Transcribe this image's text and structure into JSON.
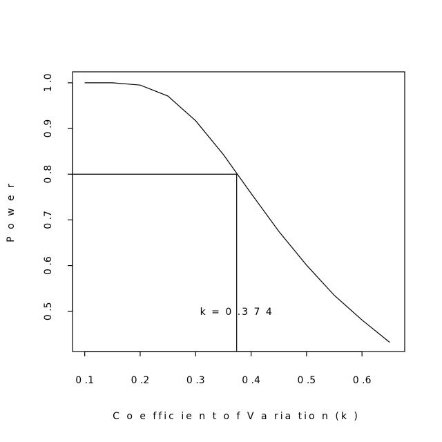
{
  "chart_data": {
    "type": "line",
    "title": "",
    "xlabel": "C o e ffic ie n t o f V a ria tio n (k )",
    "ylabel": "P o w e r",
    "xlim": [
      0.078,
      0.677
    ],
    "ylim": [
      0.412,
      1.024
    ],
    "xticks": [
      0.1,
      0.2,
      0.3,
      0.4,
      0.5,
      0.6
    ],
    "xtick_labels": [
      "0 .1",
      "0 .2",
      "0 .3",
      "0 .4",
      "0 .5",
      "0 .6"
    ],
    "yticks": [
      0.5,
      0.6,
      0.7,
      0.8,
      0.9,
      1.0
    ],
    "ytick_labels": [
      "0 .5",
      "0 .6",
      "0 .7",
      "0 .8",
      "0 .9",
      "1 .0"
    ],
    "grid": false,
    "series": [
      {
        "x": [
          0.1,
          0.15,
          0.2,
          0.25,
          0.3,
          0.35,
          0.4,
          0.45,
          0.5,
          0.55,
          0.6,
          0.65
        ],
        "y": [
          1.0,
          1.0,
          0.995,
          0.971,
          0.917,
          0.843,
          0.758,
          0.675,
          0.601,
          0.535,
          0.481,
          0.432
        ]
      }
    ],
    "reference": {
      "k": 0.374,
      "power": 0.8
    },
    "annotation": {
      "text": "k = 0 .3 7 4",
      "x": 0.374,
      "y": 0.5
    }
  }
}
